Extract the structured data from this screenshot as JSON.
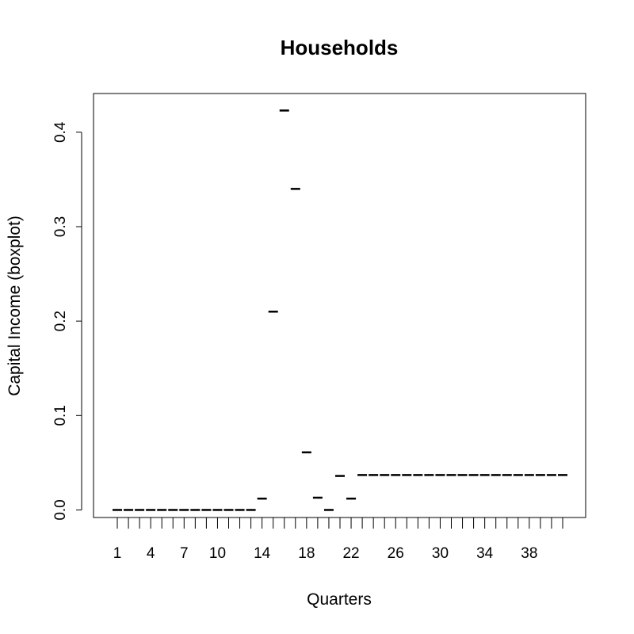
{
  "chart_data": {
    "type": "boxplot",
    "title": "Households",
    "xlabel": "Quarters",
    "ylabel": "Capital Income (boxplot)",
    "x_ticks": [
      "1",
      "4",
      "7",
      "10",
      "14",
      "18",
      "22",
      "26",
      "30",
      "34",
      "38"
    ],
    "y_ticks": [
      "0.0",
      "0.1",
      "0.2",
      "0.3",
      "0.4"
    ],
    "ylim": [
      -0.008,
      0.441
    ],
    "categories": [
      1,
      2,
      3,
      4,
      5,
      6,
      7,
      8,
      9,
      10,
      11,
      12,
      13,
      14,
      15,
      16,
      17,
      18,
      19,
      20,
      21,
      22,
      23,
      24,
      25,
      26,
      27,
      28,
      29,
      30,
      31,
      32,
      33,
      34,
      35,
      36,
      37,
      38,
      39,
      40,
      41
    ],
    "values": [
      0,
      0,
      0,
      0,
      0,
      0,
      0,
      0,
      0,
      0,
      0,
      0,
      0,
      0.012,
      0.21,
      0.423,
      0.34,
      0.061,
      0.013,
      0,
      0.036,
      0.012,
      0.037,
      0.037,
      0.037,
      0.037,
      0.037,
      0.037,
      0.037,
      0.037,
      0.037,
      0.037,
      0.037,
      0.037,
      0.037,
      0.037,
      0.037,
      0.037,
      0.037,
      0.037,
      0.037
    ],
    "grid": false,
    "legend": "none"
  }
}
